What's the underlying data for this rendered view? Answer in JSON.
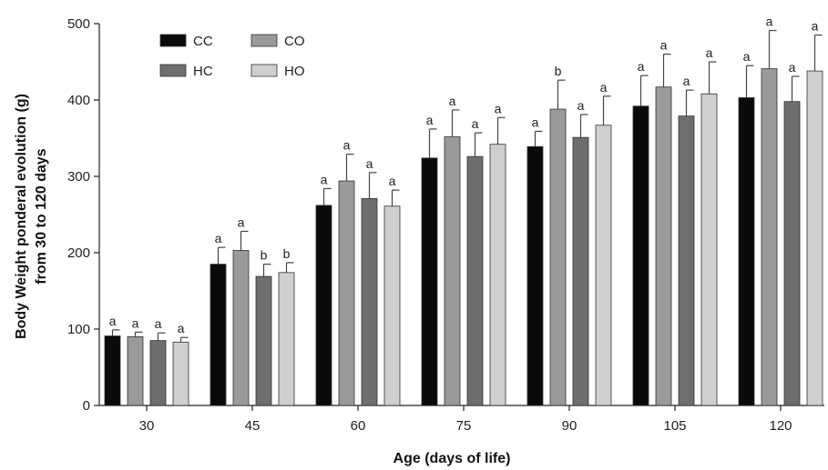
{
  "chart_data": {
    "type": "bar",
    "title": "",
    "xlabel": "Age (days of life)",
    "ylabel_line1": "Body Weight ponderal evolution (g)",
    "ylabel_line2": "from 30 to 120 days",
    "ylim": [
      0,
      500
    ],
    "yticks": [
      "0",
      "100",
      "200",
      "300",
      "400",
      "500"
    ],
    "categories": [
      "30",
      "45",
      "60",
      "75",
      "90",
      "105",
      "120"
    ],
    "legend_position": "top-left",
    "series": [
      {
        "name": "CC",
        "color": "#0a0a0a",
        "values": [
          91,
          185,
          262,
          324,
          339,
          392,
          403
        ],
        "errors": [
          8,
          22,
          22,
          38,
          20,
          40,
          42
        ],
        "labels": [
          "a",
          "a",
          "a",
          "a",
          "a",
          "a",
          "a"
        ]
      },
      {
        "name": "CO",
        "color": "#9a9a9a",
        "values": [
          90,
          203,
          294,
          352,
          388,
          417,
          441
        ],
        "errors": [
          6,
          25,
          35,
          35,
          38,
          43,
          50
        ],
        "labels": [
          "a",
          "a",
          "a",
          "a",
          "b",
          "a",
          "a"
        ]
      },
      {
        "name": "HC",
        "color": "#6e6e6e",
        "values": [
          85,
          169,
          271,
          326,
          351,
          379,
          398
        ],
        "errors": [
          10,
          16,
          34,
          31,
          30,
          34,
          33
        ],
        "labels": [
          "a",
          "b",
          "a",
          "a",
          "a",
          "a",
          "a"
        ]
      },
      {
        "name": "HO",
        "color": "#cfcfcf",
        "values": [
          83,
          174,
          261,
          342,
          367,
          408,
          438
        ],
        "errors": [
          6,
          13,
          21,
          35,
          38,
          42,
          47
        ],
        "labels": [
          "a",
          "b",
          "a",
          "a",
          "a",
          "a",
          "a"
        ]
      }
    ]
  }
}
